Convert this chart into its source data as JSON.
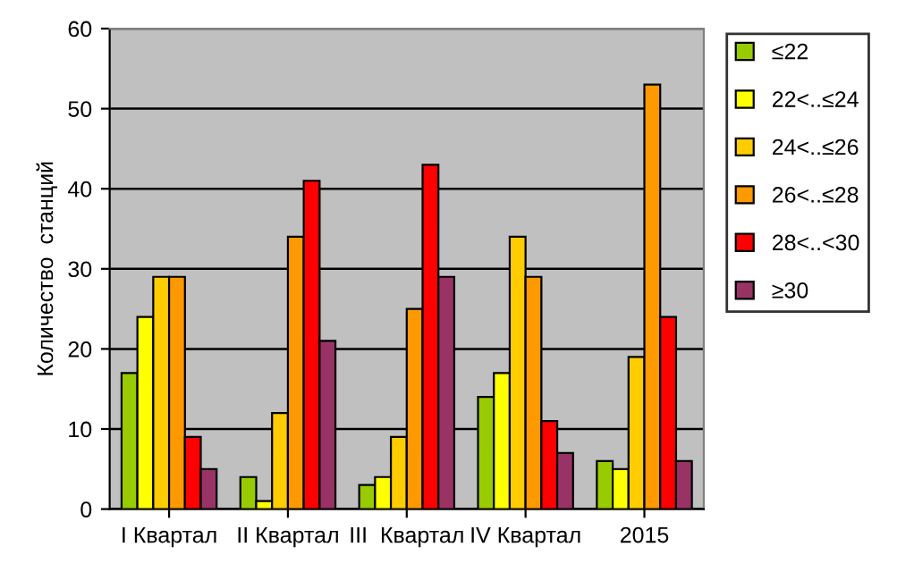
{
  "chart_data": {
    "type": "bar",
    "ylabel": "Количество  станций",
    "categories": [
      "I Квартал",
      "II Квартал",
      "III  Квартал",
      "IV Квартал",
      "2015"
    ],
    "series": [
      {
        "name": "≤22",
        "color": "#99cc00",
        "values": [
          17,
          4,
          3,
          14,
          6
        ]
      },
      {
        "name": "22<..≤24",
        "color": "#ffff00",
        "values": [
          24,
          1,
          4,
          17,
          5
        ]
      },
      {
        "name": "24<..≤26",
        "color": "#ffcc00",
        "values": [
          29,
          12,
          9,
          34,
          19
        ]
      },
      {
        "name": "26<..≤28",
        "color": "#ff9900",
        "values": [
          29,
          34,
          25,
          29,
          53
        ]
      },
      {
        "name": "28<..<30",
        "color": "#ff0000",
        "values": [
          9,
          41,
          43,
          11,
          24
        ]
      },
      {
        "name": "≥30",
        "color": "#993366",
        "values": [
          5,
          21,
          29,
          7,
          6
        ]
      }
    ],
    "ylim": [
      0,
      60
    ],
    "yticks": [
      0,
      10,
      20,
      30,
      40,
      50,
      60
    ],
    "grid": "y",
    "legend": "right"
  }
}
